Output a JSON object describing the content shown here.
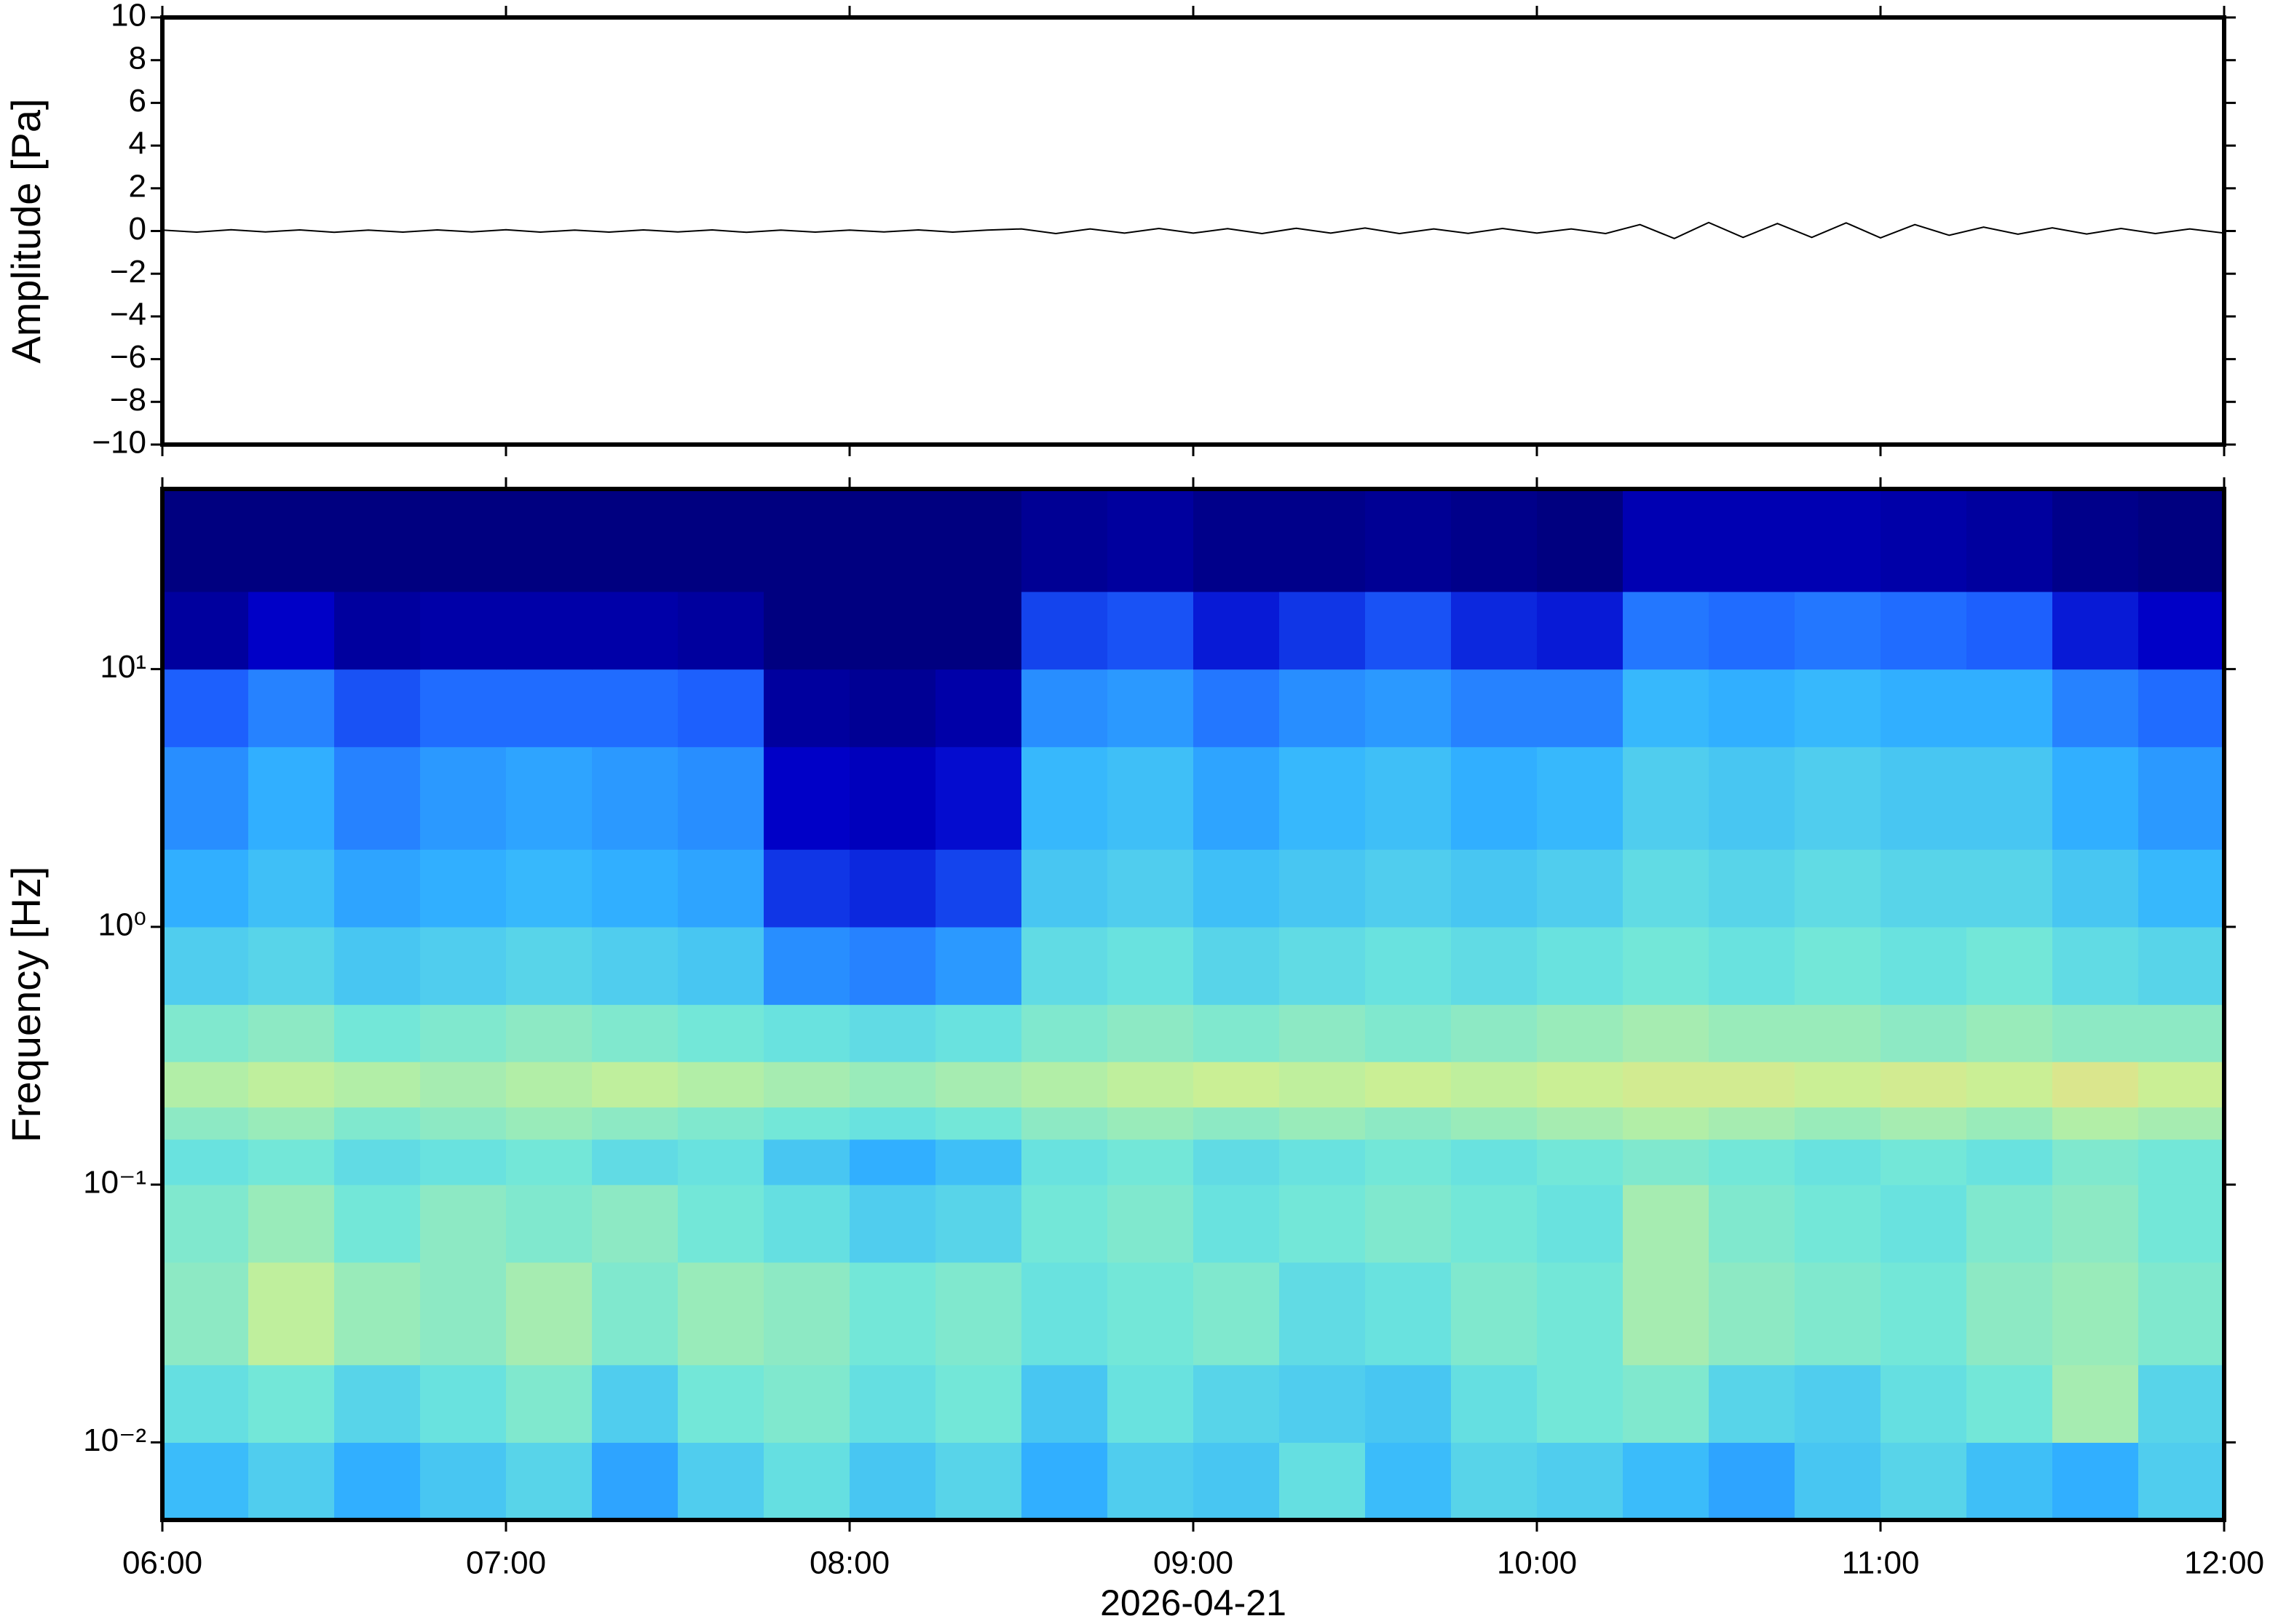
{
  "chart_data": [
    {
      "type": "line",
      "ylabel": "Amplitude [Pa]",
      "color": "#000000",
      "xlim": [
        6,
        12
      ],
      "xticks": [
        6,
        7,
        8,
        9,
        10,
        11,
        12
      ],
      "ylim": [
        -10,
        10
      ],
      "yticks": [
        {
          "value": -10,
          "label": "−10"
        },
        {
          "value": -8,
          "label": "−8"
        },
        {
          "value": -6,
          "label": "−6"
        },
        {
          "value": -4,
          "label": "−4"
        },
        {
          "value": -2,
          "label": "−2"
        },
        0,
        2,
        4,
        6,
        8,
        10
      ],
      "x": [
        6.0,
        6.1,
        6.2,
        6.3,
        6.4,
        6.5,
        6.6,
        6.7,
        6.8,
        6.9,
        7.0,
        7.1,
        7.2,
        7.3,
        7.4,
        7.5,
        7.6,
        7.7,
        7.8,
        7.9,
        8.0,
        8.1,
        8.2,
        8.3,
        8.4,
        8.5,
        8.6,
        8.7,
        8.8,
        8.9,
        9.0,
        9.1,
        9.2,
        9.3,
        9.4,
        9.5,
        9.6,
        9.7,
        9.8,
        9.9,
        10.0,
        10.1,
        10.2,
        10.3,
        10.4,
        10.5,
        10.6,
        10.7,
        10.8,
        10.9,
        11.0,
        11.1,
        11.2,
        11.3,
        11.4,
        11.5,
        11.6,
        11.7,
        11.8,
        11.9,
        12.0
      ],
      "values": [
        0.04,
        -0.05,
        0.06,
        -0.04,
        0.05,
        -0.06,
        0.04,
        -0.05,
        0.05,
        -0.04,
        0.06,
        -0.05,
        0.04,
        -0.05,
        0.05,
        -0.04,
        0.05,
        -0.06,
        0.04,
        -0.05,
        0.04,
        -0.04,
        0.05,
        -0.05,
        0.04,
        0.1,
        -0.12,
        0.1,
        -0.1,
        0.12,
        -0.1,
        0.11,
        -0.12,
        0.13,
        -0.1,
        0.14,
        -0.12,
        0.1,
        -0.11,
        0.12,
        -0.1,
        0.1,
        -0.12,
        0.3,
        -0.35,
        0.4,
        -0.3,
        0.35,
        -0.3,
        0.38,
        -0.32,
        0.3,
        -0.2,
        0.18,
        -0.15,
        0.15,
        -0.14,
        0.12,
        -0.12,
        0.1,
        -0.1
      ]
    },
    {
      "type": "heatmap",
      "ylabel": "Frequency [Hz]",
      "xlabel": "2026-04-21",
      "ylog": true,
      "xlim": [
        6,
        12
      ],
      "xticks": [
        {
          "value": 6,
          "label": "06:00"
        },
        {
          "value": 7,
          "label": "07:00"
        },
        {
          "value": 8,
          "label": "08:00"
        },
        {
          "value": 9,
          "label": "09:00"
        },
        {
          "value": 10,
          "label": "10:00"
        },
        {
          "value": 11,
          "label": "11:00"
        },
        {
          "value": 12,
          "label": "12:00"
        }
      ],
      "ylim": [
        0.005,
        50
      ],
      "yticks": [
        {
          "value": 0.01,
          "label": "10⁻²"
        },
        {
          "value": 0.1,
          "label": "10⁻¹"
        },
        {
          "value": 1,
          "label": "10⁰"
        },
        {
          "value": 10,
          "label": "10¹"
        }
      ],
      "colormap": [
        "#000080",
        "#0000c8",
        "#1e64ff",
        "#32b4ff",
        "#6ee6dc",
        "#c8f096",
        "#ffd27a",
        "#ff8c50"
      ],
      "zlim": [
        0,
        100
      ],
      "x_bins": [
        6,
        6.25,
        6.5,
        6.75,
        7,
        7.25,
        7.5,
        7.75,
        8,
        8.25,
        8.5,
        8.75,
        9,
        9.25,
        9.5,
        9.75,
        10,
        10.25,
        10.5,
        10.75,
        11,
        11.25,
        11.5,
        11.75,
        12
      ],
      "y_bins": [
        0.005,
        0.01,
        0.02,
        0.05,
        0.1,
        0.15,
        0.2,
        0.3,
        0.5,
        1,
        2,
        5,
        10,
        20,
        50
      ],
      "z": [
        [
          45,
          50,
          42,
          48,
          52,
          40,
          50,
          55,
          48,
          52,
          42,
          50,
          48,
          55,
          45,
          52,
          50,
          45,
          40,
          48,
          52,
          46,
          42,
          50
        ],
        [
          55,
          58,
          52,
          56,
          60,
          50,
          58,
          60,
          55,
          58,
          48,
          56,
          52,
          50,
          48,
          55,
          58,
          60,
          52,
          50,
          55,
          58,
          66,
          52
        ],
        [
          62,
          70,
          64,
          62,
          66,
          60,
          64,
          62,
          58,
          60,
          56,
          58,
          60,
          54,
          56,
          60,
          58,
          66,
          62,
          60,
          58,
          62,
          64,
          60
        ],
        [
          60,
          64,
          58,
          62,
          60,
          62,
          58,
          55,
          50,
          52,
          58,
          60,
          56,
          58,
          60,
          58,
          56,
          66,
          60,
          58,
          56,
          60,
          62,
          58
        ],
        [
          56,
          58,
          54,
          56,
          58,
          54,
          56,
          48,
          42,
          46,
          56,
          58,
          54,
          56,
          58,
          56,
          58,
          60,
          58,
          56,
          58,
          56,
          60,
          58
        ],
        [
          62,
          64,
          60,
          62,
          64,
          62,
          60,
          58,
          56,
          58,
          62,
          64,
          62,
          64,
          62,
          64,
          66,
          68,
          66,
          64,
          66,
          64,
          68,
          66
        ],
        [
          68,
          70,
          68,
          66,
          68,
          70,
          68,
          66,
          64,
          66,
          68,
          70,
          72,
          70,
          72,
          70,
          72,
          74,
          74,
          72,
          74,
          72,
          76,
          72
        ],
        [
          60,
          62,
          58,
          60,
          62,
          60,
          58,
          56,
          54,
          56,
          60,
          62,
          60,
          62,
          60,
          62,
          64,
          66,
          64,
          64,
          62,
          64,
          62,
          62
        ],
        [
          50,
          52,
          48,
          50,
          52,
          50,
          48,
          36,
          34,
          38,
          54,
          56,
          52,
          54,
          56,
          54,
          56,
          58,
          56,
          58,
          56,
          58,
          54,
          52
        ],
        [
          42,
          46,
          40,
          42,
          44,
          42,
          40,
          22,
          20,
          24,
          48,
          50,
          46,
          48,
          50,
          48,
          50,
          54,
          52,
          54,
          52,
          52,
          48,
          44
        ],
        [
          36,
          42,
          34,
          38,
          40,
          38,
          36,
          14,
          12,
          16,
          44,
          46,
          40,
          44,
          46,
          42,
          44,
          50,
          48,
          50,
          48,
          48,
          42,
          38
        ],
        [
          28,
          34,
          26,
          30,
          30,
          30,
          28,
          6,
          4,
          8,
          36,
          38,
          32,
          36,
          38,
          34,
          34,
          44,
          42,
          44,
          42,
          42,
          34,
          30
        ],
        [
          6,
          14,
          6,
          8,
          8,
          8,
          6,
          0,
          0,
          0,
          24,
          26,
          18,
          22,
          26,
          20,
          18,
          32,
          30,
          32,
          30,
          28,
          18,
          14
        ],
        [
          0,
          0,
          0,
          0,
          0,
          0,
          0,
          0,
          0,
          0,
          4,
          6,
          2,
          2,
          4,
          2,
          0,
          10,
          10,
          10,
          8,
          6,
          2,
          0
        ]
      ]
    }
  ]
}
